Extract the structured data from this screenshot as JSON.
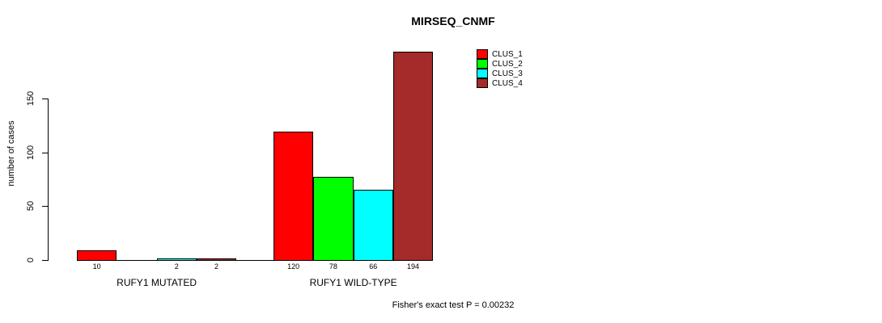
{
  "title": "MIRSEQ_CNMF",
  "annotation": "Fisher's exact test P = 0.00232",
  "colors": {
    "background": "#ffffff",
    "axis": "#000000",
    "bar_border": "#000000",
    "clus_1": "#ff0000",
    "clus_2": "#00ff00",
    "clus_3": "#00ffff",
    "clus_4": "#a52a2a"
  },
  "chart_data": {
    "type": "bar",
    "title": "MIRSEQ_CNMF",
    "xlabel": "",
    "ylabel": "number of cases",
    "ylim": [
      0,
      200
    ],
    "yticks": [
      0,
      50,
      100,
      150
    ],
    "grid": false,
    "legend_position": "top-right-inside",
    "categories": [
      "RUFY1 MUTATED",
      "RUFY1 WILD-TYPE"
    ],
    "series": [
      {
        "name": "CLUS_1",
        "color": "#ff0000",
        "values": [
          10,
          120
        ]
      },
      {
        "name": "CLUS_2",
        "color": "#00ff00",
        "values": [
          0,
          78
        ]
      },
      {
        "name": "CLUS_3",
        "color": "#00ffff",
        "values": [
          2,
          66
        ]
      },
      {
        "name": "CLUS_4",
        "color": "#a52a2a",
        "values": [
          2,
          194
        ]
      }
    ],
    "bar_value_labels": [
      [
        "10",
        "",
        "2",
        "2"
      ],
      [
        "120",
        "78",
        "66",
        "194"
      ]
    ],
    "annotation": "Fisher's exact test P = 0.00232"
  },
  "legend": {
    "items": [
      {
        "label": "CLUS_1",
        "color": "#ff0000"
      },
      {
        "label": "CLUS_2",
        "color": "#00ff00"
      },
      {
        "label": "CLUS_3",
        "color": "#00ffff"
      },
      {
        "label": "CLUS_4",
        "color": "#a52a2a"
      }
    ]
  }
}
